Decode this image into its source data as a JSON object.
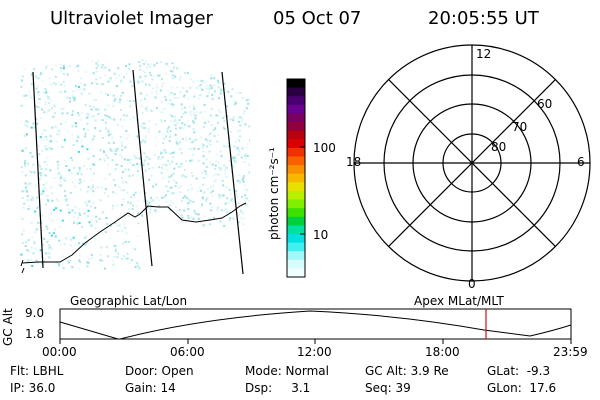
{
  "header": {
    "instrument": "Ultraviolet Imager",
    "date": "05 Oct 07",
    "time": "20:05:55 UT"
  },
  "colorbar": {
    "label": "photon cm⁻²s⁻¹",
    "ticks": [
      "100",
      "10"
    ],
    "colors": [
      "#000000",
      "#2a0040",
      "#4a0070",
      "#6a0090",
      "#7a0060",
      "#90003a",
      "#b80010",
      "#d80000",
      "#f03000",
      "#f86000",
      "#f89000",
      "#f8b800",
      "#e8e000",
      "#b8f000",
      "#80f000",
      "#40e000",
      "#00d040",
      "#00e0a0",
      "#00e0e0",
      "#40f0f0",
      "#a0f8f8",
      "#d8fcfc",
      "#f0ffff"
    ]
  },
  "polar": {
    "hour_labels": [
      "12",
      "18",
      "6",
      "0"
    ],
    "lat_labels": [
      "60",
      "70",
      "80"
    ]
  },
  "timeline": {
    "left_label": "Geographic Lat/Lon",
    "right_label": "Apex MLat/MLT",
    "axis_label": "GC Alt",
    "y_ticks": [
      "9.0",
      "1.8"
    ],
    "x_ticks": [
      "00:00",
      "06:00",
      "12:00",
      "18:00",
      "23:59"
    ],
    "marker_color": "#d01010",
    "marker_time": "20:05:55"
  },
  "footer": {
    "row1": {
      "filter": "Flt: LBHL",
      "door": "Door: Open",
      "mode": "Mode: Normal",
      "gc_alt": "GC Alt: 3.9 Re",
      "glat": "GLat:  -9.3"
    },
    "row2": {
      "ip": "IP: 36.0",
      "gain": "Gain: 14",
      "dsp": "Dsp:     3.1",
      "seq": "Seq: 39",
      "glon": "GLon:  17.6"
    }
  }
}
